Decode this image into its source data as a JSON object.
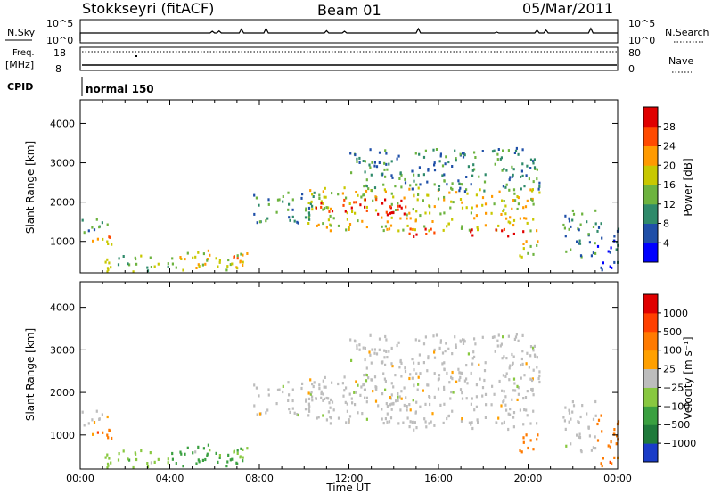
{
  "header": {
    "station": "Stokkseyri (fitACF)",
    "beam": "Beam 01",
    "date": "05/Mar/2011"
  },
  "top_panels": {
    "nsky_label": "N.Sky",
    "nsky_ticks": [
      "10^5",
      "10^0"
    ],
    "nsearch_label": "N.Search",
    "nsearch_ticks": [
      "10^5",
      "10^0"
    ],
    "freq_label": "Freq.",
    "freq_unit": "[MHz]",
    "freq_ticks": [
      "18",
      "8"
    ],
    "nave_label": "Nave",
    "nave_ticks": [
      "80",
      "0"
    ],
    "cpid_label": "CPID",
    "cpid_value": "normal 150"
  },
  "chart_data": [
    {
      "type": "heatmap",
      "name": "power",
      "ylabel": "Slant Range [km]",
      "xlabel": "",
      "xlim": [
        0,
        24
      ],
      "ylim": [
        200,
        4600
      ],
      "yticks": [
        "1000",
        "2000",
        "3000",
        "4000"
      ],
      "colorbar_label": "Power [dB]",
      "colorbar_ticks": [
        "28",
        "24",
        "20",
        "16",
        "12",
        "8",
        "4"
      ],
      "colors": [
        "#0000ff",
        "#1f4fa8",
        "#2f8a6a",
        "#6db33f",
        "#c8c800",
        "#ff9a00",
        "#ff4a00",
        "#e00000"
      ]
    },
    {
      "type": "heatmap",
      "name": "velocity",
      "ylabel": "Slant Range [km]",
      "xlabel": "Time UT",
      "xlim": [
        0,
        24
      ],
      "ylim": [
        200,
        4600
      ],
      "yticks": [
        "1000",
        "2000",
        "3000",
        "4000"
      ],
      "xticks": [
        "00:00",
        "04:00",
        "08:00",
        "12:00",
        "16:00",
        "20:00",
        "00:00"
      ],
      "colorbar_label": "Velocity [m s⁻¹]",
      "colorbar_ticks": [
        "1000",
        "500",
        "100",
        "25",
        "−25",
        "−100",
        "−500",
        "−1000"
      ],
      "colors": [
        "#1a3cc8",
        "#1f7a3a",
        "#3aa040",
        "#88c840",
        "#bdbdbd",
        "#ffa000",
        "#ff7a00",
        "#ff4000",
        "#e00000"
      ]
    }
  ],
  "scatter_regions": [
    {
      "t0": 0.0,
      "t1": 1.5,
      "r0": 900,
      "r1": 1200,
      "pow": 5,
      "vel": 6
    },
    {
      "t0": 0.0,
      "t1": 1.2,
      "r0": 1200,
      "r1": 1600,
      "pow": 2,
      "vel": 4
    },
    {
      "t0": 1.0,
      "t1": 4.0,
      "r0": 250,
      "r1": 700,
      "pow": 3,
      "vel": 3
    },
    {
      "t0": 4.0,
      "t1": 7.5,
      "r0": 300,
      "r1": 800,
      "pow": 4,
      "vel": 2
    },
    {
      "t0": 5.0,
      "t1": 7.5,
      "r0": 500,
      "r1": 750,
      "pow": 5,
      "vel": 3
    },
    {
      "t0": 7.5,
      "t1": 10.5,
      "r0": 1500,
      "r1": 2300,
      "pow": 2,
      "vel": 4
    },
    {
      "t0": 10.0,
      "t1": 20.5,
      "r0": 1300,
      "r1": 2400,
      "pow": 4,
      "vel": 4
    },
    {
      "t0": 10.5,
      "t1": 14.5,
      "r0": 1700,
      "r1": 2100,
      "pow": 7,
      "vel": 4
    },
    {
      "t0": 14.5,
      "t1": 20.0,
      "r0": 1150,
      "r1": 1350,
      "pow": 7,
      "vel": 4
    },
    {
      "t0": 12.0,
      "t1": 20.5,
      "r0": 2300,
      "r1": 3400,
      "pow": 2,
      "vel": 4
    },
    {
      "t0": 19.5,
      "t1": 20.5,
      "r0": 600,
      "r1": 1100,
      "pow": 4,
      "vel": 6
    },
    {
      "t0": 21.5,
      "t1": 23.0,
      "r0": 600,
      "r1": 1900,
      "pow": 2,
      "vel": 4
    },
    {
      "t0": 23.0,
      "t1": 24.0,
      "r0": 300,
      "r1": 1500,
      "pow": 1,
      "vel": 6
    }
  ]
}
